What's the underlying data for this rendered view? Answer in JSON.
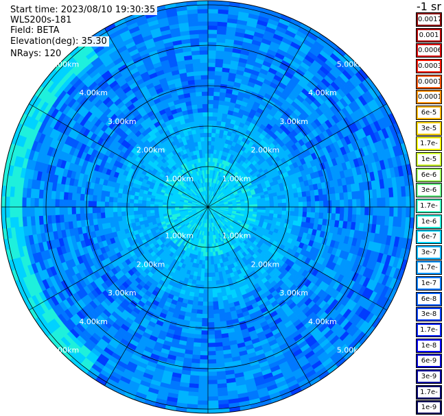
{
  "header": {
    "start_time": "Start time: 2023/08/10 19:30:35",
    "device": "WLS200s-181",
    "field": "Field: BETA",
    "elevation": "Elevation(deg): 35.30",
    "nrays": "NRays: 120"
  },
  "chart_data": {
    "type": "heatmap",
    "projection": "polar (PPI)",
    "field": "BETA",
    "nrays": 120,
    "elevation_deg": 35.3,
    "range_rings_km": [
      1,
      2,
      3,
      4,
      5
    ],
    "ring_labels": [
      "1.00km",
      "2.00km",
      "3.00km",
      "4.00km",
      "5.00km"
    ],
    "spoke_angles_deg": [
      0,
      30,
      60,
      90,
      120,
      150,
      180,
      210,
      240,
      270,
      300,
      330
    ],
    "colorbar": {
      "unit_label": "-1 sr",
      "ticks": [
        "0.0017",
        "0.001",
        "0.0006",
        "0.0003",
        "0.00017",
        "0.0001",
        "6e-5",
        "3e-5",
        "1.7e-5",
        "1e-5",
        "6e-6",
        "3e-6",
        "1.7e-6",
        "1e-6",
        "6e-7",
        "3e-7",
        "1.7e-7",
        "1e-7",
        "6e-8",
        "3e-8",
        "1.7e-8",
        "1e-8",
        "6e-9",
        "3e-9",
        "1.7e-9",
        "1e-9"
      ],
      "colors": [
        "#8b0000",
        "#b40000",
        "#dc0000",
        "#ff1400",
        "#ff5000",
        "#ff8c00",
        "#ffb400",
        "#ffd700",
        "#ffff00",
        "#d2ff2d",
        "#a0ff5a",
        "#6eff8c",
        "#3cffbe",
        "#1ef0dc",
        "#00d2ff",
        "#00b4ff",
        "#0096ff",
        "#0078ff",
        "#005aff",
        "#003cff",
        "#001eff",
        "#0000ff",
        "#0000d2",
        "#0000a0",
        "#00006e",
        "#00005a"
      ]
    },
    "dominant_value_range": [
      "3e-8",
      "1e-7"
    ],
    "notes_visible": "Near-center values mostly 1.7e-7 to 3e-7; western edge reaches 1e-6 to 1.7e-6"
  }
}
